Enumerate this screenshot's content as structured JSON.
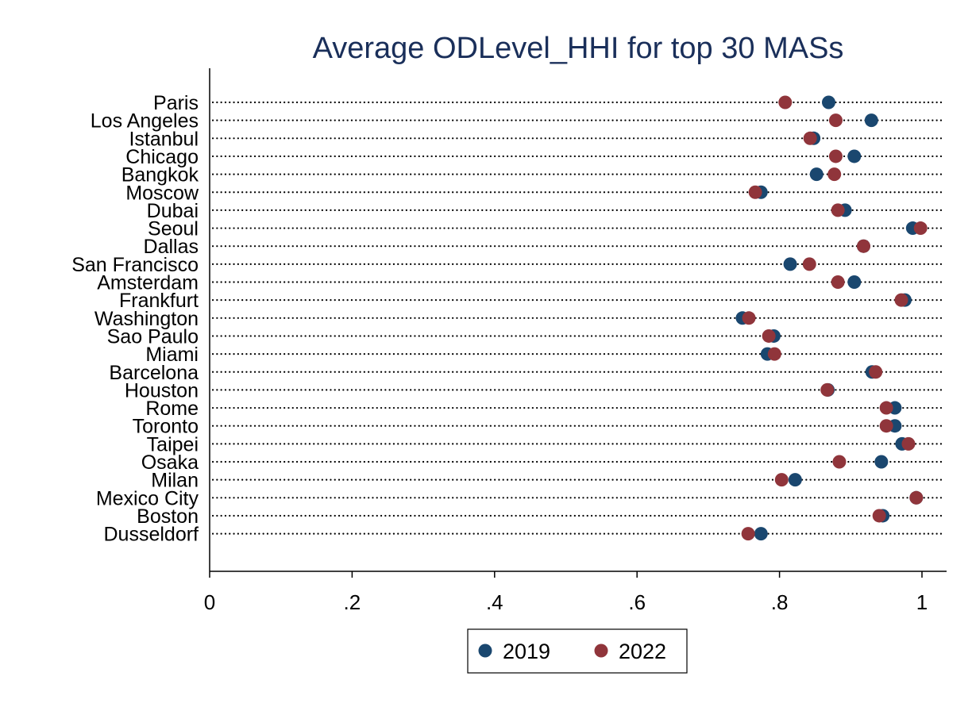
{
  "chart_data": {
    "type": "scatter",
    "title": "Average ODLevel_HHI for top 30 MASs",
    "xlabel": "",
    "ylabel": "",
    "xlim": [
      0,
      1.03
    ],
    "x_ticks": [
      0,
      0.2,
      0.4,
      0.6,
      0.8,
      1
    ],
    "x_tick_labels": [
      "0",
      ".2",
      ".4",
      ".6",
      ".8",
      "1"
    ],
    "grid": "dotted horizontal lines per category",
    "legend_position": "bottom",
    "categories": [
      "Paris",
      "Los Angeles",
      "Istanbul",
      "Chicago",
      "Bangkok",
      "Moscow",
      "Dubai",
      "Seoul",
      "Dallas",
      "San Francisco",
      "Amsterdam",
      "Frankfurt",
      "Washington",
      "Sao Paulo",
      "Miami",
      "Barcelona",
      "Houston",
      "Rome",
      "Toronto",
      "Taipei",
      "Osaka",
      "Milan",
      "Mexico City",
      "Boston",
      "Dusseldorf"
    ],
    "series": [
      {
        "name": "2019",
        "color": "#1a476f",
        "values": [
          0.869,
          0.929,
          0.848,
          0.905,
          0.852,
          0.774,
          0.892,
          0.987,
          0.918,
          0.815,
          0.905,
          0.976,
          0.748,
          0.792,
          0.783,
          0.93,
          0.868,
          0.962,
          0.962,
          0.972,
          0.943,
          0.822,
          0.992,
          0.945,
          0.774
        ]
      },
      {
        "name": "2022",
        "color": "#90353b",
        "values": [
          0.808,
          0.879,
          0.843,
          0.879,
          0.877,
          0.766,
          0.882,
          0.998,
          0.918,
          0.842,
          0.882,
          0.971,
          0.757,
          0.785,
          0.793,
          0.935,
          0.867,
          0.95,
          0.95,
          0.981,
          0.884,
          0.803,
          0.992,
          0.94,
          0.756
        ]
      }
    ]
  }
}
